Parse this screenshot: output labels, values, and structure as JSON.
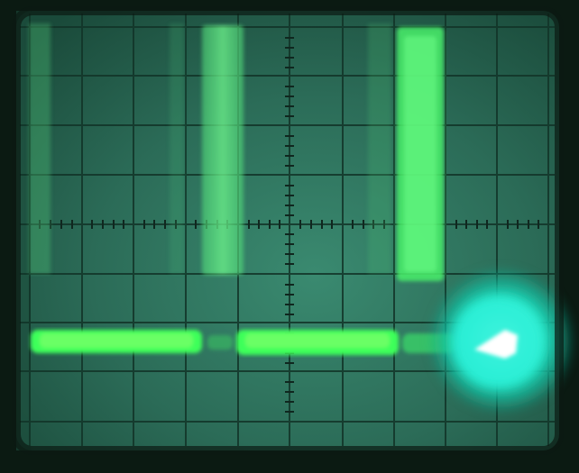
{
  "photo": {
    "subject": "oscilloscope-screen",
    "colors": {
      "bezel": "#0b1a12",
      "screen": "#2c6e5a",
      "graticule": "#0f2a20",
      "trace": "#3dff6a",
      "trace_bright": "#7dff8a",
      "glare": "#20f0d0"
    }
  }
}
